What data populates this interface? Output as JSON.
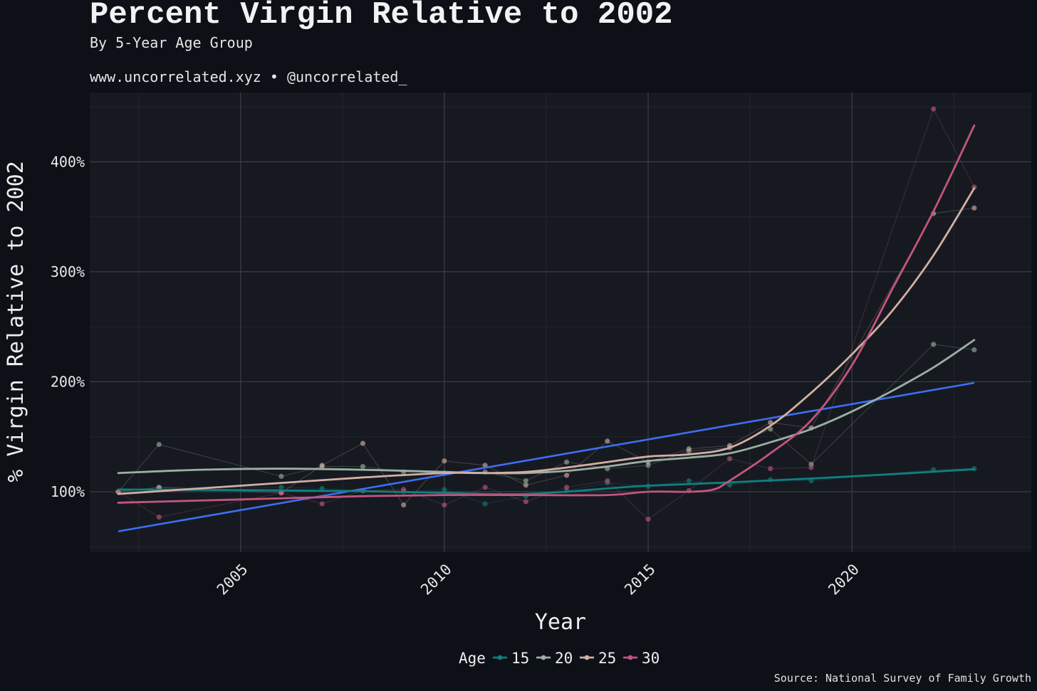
{
  "header": {
    "title": "Percent Virgin Relative to 2002",
    "subtitle": "By 5-Year Age Group",
    "tagline": "www.uncorrelated.xyz • @uncorrelated_"
  },
  "caption": "Source: National Survey of Family Growth",
  "colors": {
    "background": "#0d1017",
    "panel": "#161a20",
    "grid_major": "#3a3e45",
    "grid_minor": "#22262d",
    "trend": "#3d6ef5",
    "age15": "#0f8080",
    "age20": "#9ab0a2",
    "age25": "#d3aea4",
    "age30": "#c2557e"
  },
  "chart_data": {
    "type": "line",
    "title": "Percent Virgin Relative to 2002",
    "subtitle": "By 5-Year Age Group",
    "xlabel": "Year",
    "ylabel": "% Virgin Relative to 2002",
    "xlim": [
      2001.3,
      2024.4
    ],
    "ylim": [
      45,
      463
    ],
    "x_ticks": [
      2005,
      2010,
      2015,
      2020
    ],
    "x_tick_labels": [
      "2005",
      "2010",
      "2015",
      "2020"
    ],
    "y_ticks": [
      100,
      200,
      300,
      400
    ],
    "y_tick_labels": [
      "100%",
      "200%",
      "300%",
      "400%"
    ],
    "grid": true,
    "legend": {
      "title": "Age",
      "position": "bottom"
    },
    "series": [
      {
        "name": "15",
        "color": "#0f8080",
        "x": [
          2002,
          2003,
          2006,
          2007,
          2008,
          2009,
          2010,
          2011,
          2012,
          2013,
          2014,
          2015,
          2016,
          2017,
          2018,
          2019,
          2022,
          2023
        ],
        "y": [
          100,
          104,
          104,
          103,
          101,
          100,
          102,
          89,
          96,
          101,
          108,
          105,
          110,
          106,
          111,
          110,
          120,
          121
        ],
        "smooth": [
          [
            2002,
            102
          ],
          [
            2005,
            101.5
          ],
          [
            2008,
            100.5
          ],
          [
            2010,
            99
          ],
          [
            2011,
            98
          ],
          [
            2012,
            98
          ],
          [
            2013,
            100
          ],
          [
            2014,
            103
          ],
          [
            2015,
            105.5
          ],
          [
            2017,
            108.5
          ],
          [
            2019,
            112
          ],
          [
            2021,
            116
          ],
          [
            2023,
            120.5
          ]
        ]
      },
      {
        "name": "20",
        "color": "#9ab0a2",
        "x": [
          2002,
          2003,
          2006,
          2007,
          2008,
          2009,
          2010,
          2011,
          2012,
          2013,
          2014,
          2015,
          2016,
          2017,
          2018,
          2019,
          2022,
          2023
        ],
        "y": [
          100,
          143,
          114,
          123,
          123,
          118,
          117,
          118,
          110,
          127,
          121,
          124,
          137,
          140,
          157,
          125,
          234,
          229
        ],
        "smooth": [
          [
            2002,
            117
          ],
          [
            2004,
            120
          ],
          [
            2006,
            121
          ],
          [
            2008,
            120
          ],
          [
            2010,
            118
          ],
          [
            2011,
            117
          ],
          [
            2012,
            117
          ],
          [
            2013,
            119
          ],
          [
            2014,
            123
          ],
          [
            2015,
            128
          ],
          [
            2016,
            131
          ],
          [
            2017,
            135
          ],
          [
            2018,
            145
          ],
          [
            2019,
            157
          ],
          [
            2020,
            173
          ],
          [
            2021,
            192
          ],
          [
            2022,
            213
          ],
          [
            2023,
            238
          ]
        ]
      },
      {
        "name": "25",
        "color": "#d3aea4",
        "x": [
          2002,
          2003,
          2006,
          2007,
          2008,
          2009,
          2010,
          2011,
          2012,
          2013,
          2014,
          2015,
          2016,
          2017,
          2018,
          2019,
          2022,
          2023
        ],
        "y": [
          100,
          104,
          99,
          124,
          144,
          88,
          128,
          124,
          106,
          115,
          146,
          127,
          139,
          142,
          163,
          158,
          353,
          358
        ],
        "smooth": [
          [
            2002,
            98
          ],
          [
            2004,
            103
          ],
          [
            2006,
            108
          ],
          [
            2008,
            113
          ],
          [
            2010,
            117
          ],
          [
            2011,
            117
          ],
          [
            2012,
            118
          ],
          [
            2013,
            122
          ],
          [
            2014,
            127
          ],
          [
            2015,
            132
          ],
          [
            2016,
            134
          ],
          [
            2017,
            140
          ],
          [
            2018,
            160
          ],
          [
            2019,
            190
          ],
          [
            2020,
            225
          ],
          [
            2021,
            265
          ],
          [
            2022,
            315
          ],
          [
            2023,
            376
          ]
        ]
      },
      {
        "name": "30",
        "color": "#c2557e",
        "x": [
          2002,
          2003,
          2006,
          2007,
          2008,
          2009,
          2010,
          2011,
          2012,
          2013,
          2014,
          2015,
          2016,
          2017,
          2018,
          2019,
          2022,
          2023
        ],
        "y": [
          100,
          77,
          99,
          89,
          101,
          102,
          88,
          104,
          91,
          104,
          110,
          75,
          101,
          130,
          121,
          122,
          448,
          377
        ],
        "smooth": [
          [
            2002,
            90
          ],
          [
            2004,
            92
          ],
          [
            2006,
            94
          ],
          [
            2008,
            96
          ],
          [
            2010,
            97
          ],
          [
            2012,
            97
          ],
          [
            2014,
            97
          ],
          [
            2015,
            100
          ],
          [
            2016,
            100
          ],
          [
            2016.6,
            102
          ],
          [
            2017,
            110
          ],
          [
            2018,
            135
          ],
          [
            2019,
            165
          ],
          [
            2020,
            215
          ],
          [
            2021,
            285
          ],
          [
            2022,
            355
          ],
          [
            2023,
            433
          ]
        ]
      }
    ],
    "trend_line": {
      "color": "#3d6ef5",
      "x": [
        2002,
        2023
      ],
      "y": [
        64,
        199
      ]
    }
  }
}
